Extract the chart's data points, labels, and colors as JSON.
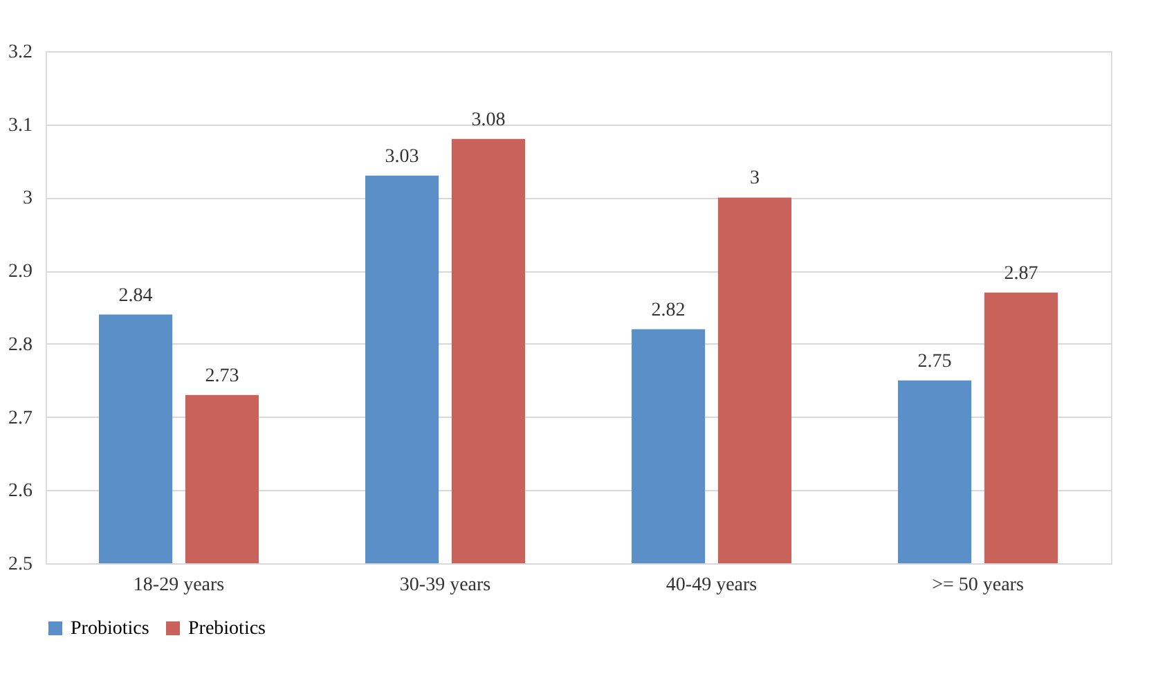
{
  "chart_data": {
    "type": "bar",
    "categories": [
      "18-29 years",
      "30-39 years",
      "40-49 years",
      ">= 50 years"
    ],
    "series": [
      {
        "name": "Probiotics",
        "color": "#5b8fc7",
        "values": [
          2.84,
          3.03,
          2.82,
          2.75
        ]
      },
      {
        "name": "Prebiotics",
        "color": "#c9625a",
        "values": [
          2.73,
          3.08,
          3,
          2.87
        ]
      }
    ],
    "ylim": [
      2.5,
      3.2
    ],
    "yticks": [
      2.5,
      2.6,
      2.7,
      2.8,
      2.9,
      3,
      3.1,
      3.2
    ],
    "grid": "y",
    "legend": "bottom",
    "data_labels": true
  }
}
